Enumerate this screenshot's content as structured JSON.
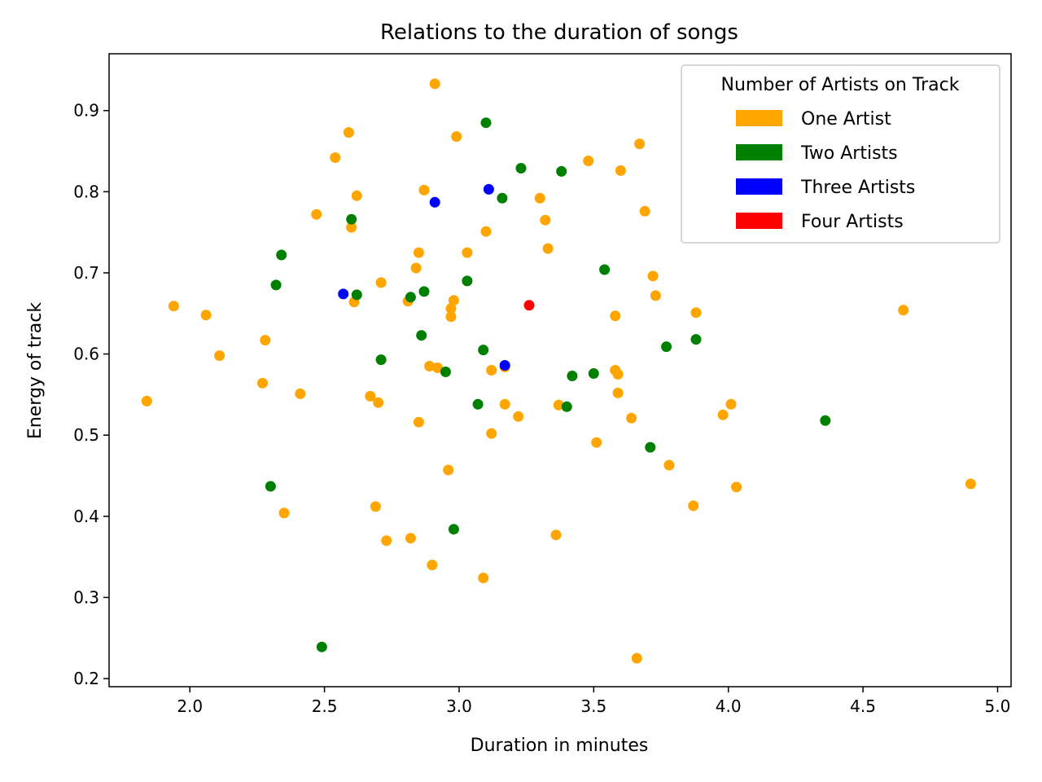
{
  "chart_data": {
    "type": "scatter",
    "title": "Relations to the duration of songs",
    "xlabel": "Duration in minutes",
    "ylabel": "Energy of track",
    "xlim": [
      1.7,
      5.05
    ],
    "ylim": [
      0.19,
      0.97
    ],
    "xticks": [
      2.0,
      2.5,
      3.0,
      3.5,
      4.0,
      4.5,
      5.0
    ],
    "yticks": [
      0.2,
      0.3,
      0.4,
      0.5,
      0.6,
      0.7,
      0.8,
      0.9
    ],
    "grid": false,
    "legend": {
      "title": "Number of Artists on Track",
      "placement": "top-right"
    },
    "series": [
      {
        "name": "One Artist",
        "color": "#FFA500",
        "points": [
          [
            1.84,
            0.542
          ],
          [
            1.94,
            0.659
          ],
          [
            2.06,
            0.648
          ],
          [
            2.11,
            0.598
          ],
          [
            2.27,
            0.564
          ],
          [
            2.28,
            0.617
          ],
          [
            2.35,
            0.404
          ],
          [
            2.41,
            0.551
          ],
          [
            2.47,
            0.772
          ],
          [
            2.54,
            0.842
          ],
          [
            2.59,
            0.873
          ],
          [
            2.6,
            0.756
          ],
          [
            2.61,
            0.664
          ],
          [
            2.62,
            0.795
          ],
          [
            2.67,
            0.548
          ],
          [
            2.69,
            0.412
          ],
          [
            2.7,
            0.54
          ],
          [
            2.71,
            0.688
          ],
          [
            2.73,
            0.37
          ],
          [
            2.81,
            0.665
          ],
          [
            2.82,
            0.373
          ],
          [
            2.84,
            0.706
          ],
          [
            2.85,
            0.516
          ],
          [
            2.85,
            0.725
          ],
          [
            2.87,
            0.802
          ],
          [
            2.89,
            0.585
          ],
          [
            2.9,
            0.34
          ],
          [
            2.91,
            0.933
          ],
          [
            2.92,
            0.583
          ],
          [
            2.96,
            0.457
          ],
          [
            2.97,
            0.646
          ],
          [
            2.97,
            0.656
          ],
          [
            2.98,
            0.666
          ],
          [
            2.99,
            0.868
          ],
          [
            3.03,
            0.725
          ],
          [
            3.09,
            0.324
          ],
          [
            3.1,
            0.751
          ],
          [
            3.12,
            0.502
          ],
          [
            3.12,
            0.58
          ],
          [
            3.17,
            0.584
          ],
          [
            3.17,
            0.538
          ],
          [
            3.22,
            0.523
          ],
          [
            3.3,
            0.792
          ],
          [
            3.32,
            0.765
          ],
          [
            3.33,
            0.73
          ],
          [
            3.36,
            0.377
          ],
          [
            3.37,
            0.537
          ],
          [
            3.48,
            0.838
          ],
          [
            3.51,
            0.491
          ],
          [
            3.58,
            0.647
          ],
          [
            3.58,
            0.58
          ],
          [
            3.59,
            0.575
          ],
          [
            3.59,
            0.552
          ],
          [
            3.6,
            0.826
          ],
          [
            3.64,
            0.521
          ],
          [
            3.66,
            0.225
          ],
          [
            3.67,
            0.859
          ],
          [
            3.69,
            0.776
          ],
          [
            3.72,
            0.696
          ],
          [
            3.73,
            0.672
          ],
          [
            3.78,
            0.463
          ],
          [
            3.87,
            0.413
          ],
          [
            3.88,
            0.651
          ],
          [
            3.98,
            0.525
          ],
          [
            4.01,
            0.538
          ],
          [
            4.03,
            0.436
          ],
          [
            4.65,
            0.654
          ],
          [
            4.9,
            0.44
          ]
        ]
      },
      {
        "name": "Two Artists",
        "color": "#008000",
        "points": [
          [
            2.3,
            0.437
          ],
          [
            2.32,
            0.685
          ],
          [
            2.34,
            0.722
          ],
          [
            2.49,
            0.239
          ],
          [
            2.6,
            0.766
          ],
          [
            2.62,
            0.673
          ],
          [
            2.71,
            0.593
          ],
          [
            2.82,
            0.67
          ],
          [
            2.86,
            0.623
          ],
          [
            2.87,
            0.677
          ],
          [
            2.95,
            0.578
          ],
          [
            2.98,
            0.384
          ],
          [
            3.03,
            0.69
          ],
          [
            3.07,
            0.538
          ],
          [
            3.09,
            0.605
          ],
          [
            3.1,
            0.885
          ],
          [
            3.16,
            0.792
          ],
          [
            3.23,
            0.829
          ],
          [
            3.38,
            0.825
          ],
          [
            3.4,
            0.535
          ],
          [
            3.42,
            0.573
          ],
          [
            3.5,
            0.576
          ],
          [
            3.54,
            0.704
          ],
          [
            3.71,
            0.485
          ],
          [
            3.77,
            0.609
          ],
          [
            3.88,
            0.618
          ],
          [
            4.36,
            0.518
          ]
        ]
      },
      {
        "name": "Three Artists",
        "color": "#0000FF",
        "points": [
          [
            2.57,
            0.674
          ],
          [
            2.91,
            0.787
          ],
          [
            3.11,
            0.803
          ],
          [
            3.17,
            0.586
          ]
        ]
      },
      {
        "name": "Four Artists",
        "color": "#FF0000",
        "points": [
          [
            3.26,
            0.66
          ]
        ]
      }
    ]
  }
}
